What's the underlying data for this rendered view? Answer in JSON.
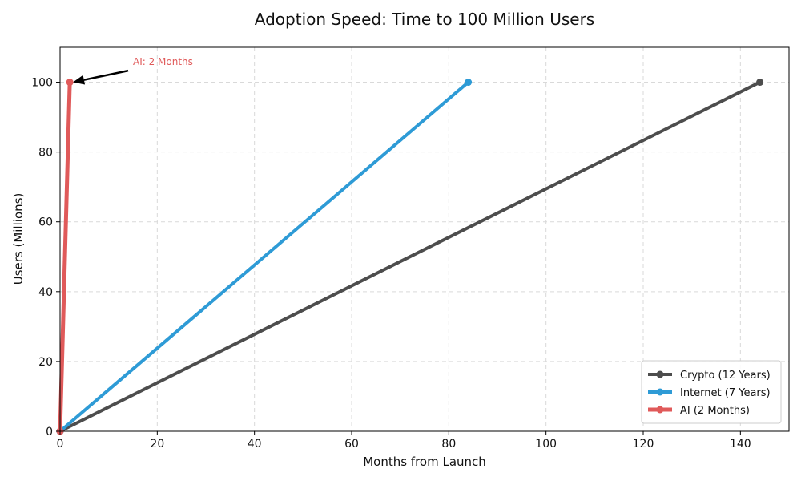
{
  "chart_data": {
    "type": "line",
    "title": "Adoption Speed: Time to 100 Million Users",
    "xlabel": "Months from Launch",
    "ylabel": "Users (Millions)",
    "xlim": [
      0,
      150
    ],
    "ylim": [
      0,
      110
    ],
    "xticks": [
      0,
      20,
      40,
      60,
      80,
      100,
      120,
      140
    ],
    "yticks": [
      0,
      20,
      40,
      60,
      80,
      100
    ],
    "grid": true,
    "legend_position": "bottom-right",
    "series": [
      {
        "name": "Crypto (12 Years)",
        "color": "#4d4d4d",
        "x": [
          0,
          144
        ],
        "y": [
          0,
          100
        ]
      },
      {
        "name": "Internet (7 Years)",
        "color": "#2e9bd6",
        "x": [
          0,
          84
        ],
        "y": [
          0,
          100
        ]
      },
      {
        "name": "AI (2 Months)",
        "color": "#e05a5a",
        "x": [
          0,
          2
        ],
        "y": [
          0,
          100
        ]
      }
    ],
    "annotations": [
      {
        "text": "AI: 2 Months",
        "color": "#e05a5a",
        "point": [
          2,
          100
        ],
        "text_at": [
          15,
          104
        ]
      }
    ]
  }
}
